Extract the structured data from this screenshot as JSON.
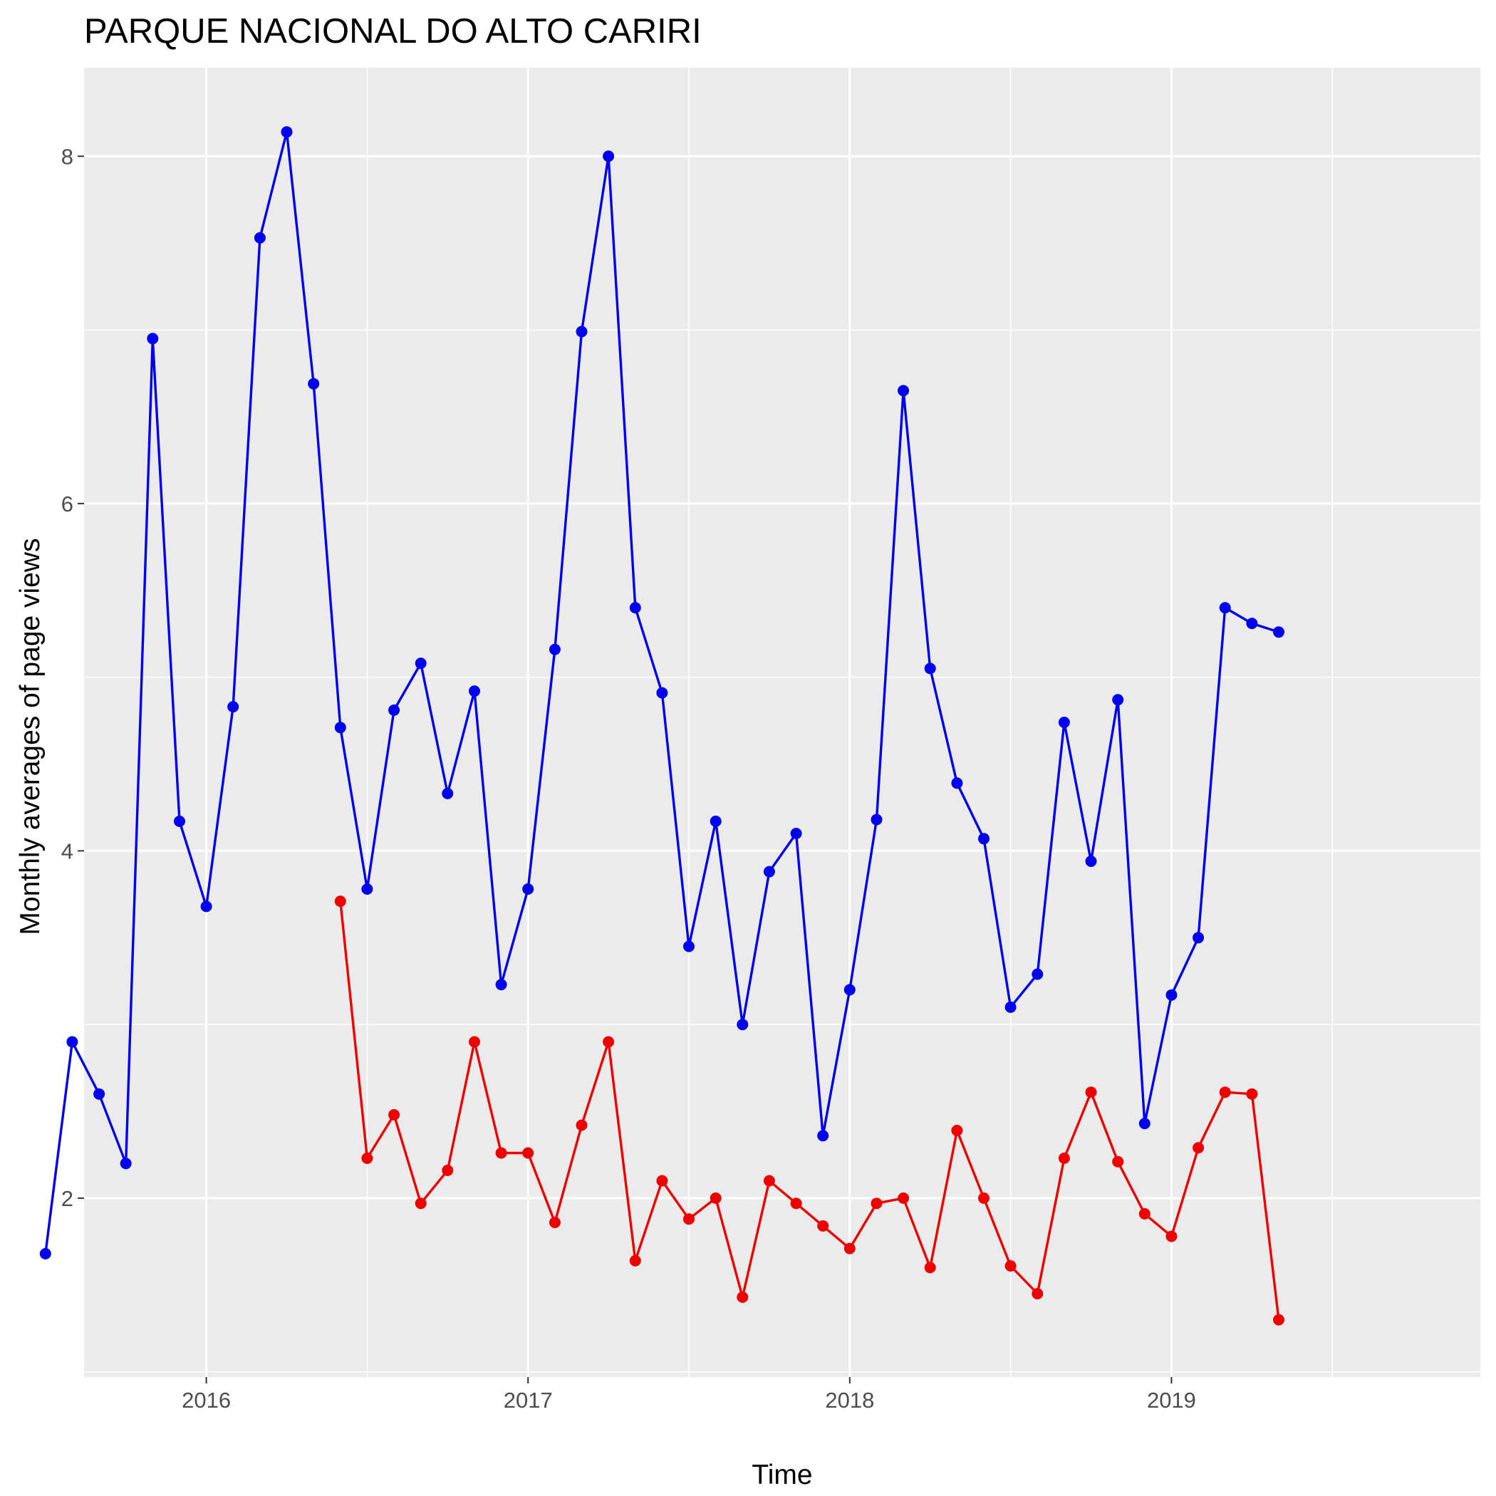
{
  "chart_data": {
    "type": "line",
    "title": "PARQUE NACIONAL DO ALTO CARIRI",
    "xlabel": "Time",
    "ylabel": "Monthly averages of page views",
    "xlim": [
      2015.62,
      2019.96
    ],
    "ylim": [
      0.97,
      8.51
    ],
    "x_ticks": [
      {
        "value": 2016,
        "label": "2016"
      },
      {
        "value": 2017,
        "label": "2017"
      },
      {
        "value": 2018,
        "label": "2018"
      },
      {
        "value": 2019,
        "label": "2019"
      }
    ],
    "y_ticks": [
      {
        "value": 2,
        "label": "2"
      },
      {
        "value": 4,
        "label": "4"
      },
      {
        "value": 6,
        "label": "6"
      },
      {
        "value": 8,
        "label": "8"
      }
    ],
    "grid": true,
    "legend": "none",
    "series": [
      {
        "color": "#0000ee",
        "points": [
          [
            "2015-07",
            1.68
          ],
          [
            "2015-08",
            2.9
          ],
          [
            "2015-09",
            2.6
          ],
          [
            "2015-10",
            2.2
          ],
          [
            "2015-11",
            6.95
          ],
          [
            "2015-12",
            4.17
          ],
          [
            "2016-01",
            3.68
          ],
          [
            "2016-02",
            4.83
          ],
          [
            "2016-03",
            7.53
          ],
          [
            "2016-04",
            8.14
          ],
          [
            "2016-05",
            6.69
          ],
          [
            "2016-06",
            4.71
          ],
          [
            "2016-07",
            3.78
          ],
          [
            "2016-08",
            4.81
          ],
          [
            "2016-09",
            5.08
          ],
          [
            "2016-10",
            4.33
          ],
          [
            "2016-11",
            4.92
          ],
          [
            "2016-12",
            3.23
          ],
          [
            "2017-01",
            3.78
          ],
          [
            "2017-02",
            5.16
          ],
          [
            "2017-03",
            6.99
          ],
          [
            "2017-04",
            8.0
          ],
          [
            "2017-05",
            5.4
          ],
          [
            "2017-06",
            4.91
          ],
          [
            "2017-07",
            3.45
          ],
          [
            "2017-08",
            4.17
          ],
          [
            "2017-09",
            3.0
          ],
          [
            "2017-10",
            3.88
          ],
          [
            "2017-11",
            4.1
          ],
          [
            "2017-12",
            2.36
          ],
          [
            "2018-01",
            3.2
          ],
          [
            "2018-02",
            4.18
          ],
          [
            "2018-03",
            6.65
          ],
          [
            "2018-04",
            5.05
          ],
          [
            "2018-05",
            4.39
          ],
          [
            "2018-06",
            4.07
          ],
          [
            "2018-07",
            3.1
          ],
          [
            "2018-08",
            3.29
          ],
          [
            "2018-09",
            4.74
          ],
          [
            "2018-10",
            3.94
          ],
          [
            "2018-11",
            4.87
          ],
          [
            "2018-12",
            2.43
          ],
          [
            "2019-01",
            3.17
          ],
          [
            "2019-02",
            3.5
          ],
          [
            "2019-03",
            5.4
          ],
          [
            "2019-04",
            5.31
          ],
          [
            "2019-05",
            5.26
          ]
        ]
      },
      {
        "color": "#ee0000",
        "points": [
          [
            "2016-06",
            3.71
          ],
          [
            "2016-07",
            2.23
          ],
          [
            "2016-08",
            2.48
          ],
          [
            "2016-09",
            1.97
          ],
          [
            "2016-10",
            2.16
          ],
          [
            "2016-11",
            2.9
          ],
          [
            "2016-12",
            2.26
          ],
          [
            "2017-01",
            2.26
          ],
          [
            "2017-02",
            1.86
          ],
          [
            "2017-03",
            2.42
          ],
          [
            "2017-04",
            2.9
          ],
          [
            "2017-05",
            1.64
          ],
          [
            "2017-06",
            2.1
          ],
          [
            "2017-07",
            1.88
          ],
          [
            "2017-08",
            2.0
          ],
          [
            "2017-09",
            1.43
          ],
          [
            "2017-10",
            2.1
          ],
          [
            "2017-11",
            1.97
          ],
          [
            "2017-12",
            1.84
          ],
          [
            "2018-01",
            1.71
          ],
          [
            "2018-02",
            1.97
          ],
          [
            "2018-03",
            2.0
          ],
          [
            "2018-04",
            1.6
          ],
          [
            "2018-05",
            2.39
          ],
          [
            "2018-06",
            2.0
          ],
          [
            "2018-07",
            1.61
          ],
          [
            "2018-08",
            1.45
          ],
          [
            "2018-09",
            2.23
          ],
          [
            "2018-10",
            2.61
          ],
          [
            "2018-11",
            2.21
          ],
          [
            "2018-12",
            1.91
          ],
          [
            "2019-01",
            1.78
          ],
          [
            "2019-02",
            2.29
          ],
          [
            "2019-03",
            2.61
          ],
          [
            "2019-04",
            2.6
          ],
          [
            "2019-05",
            1.3
          ]
        ]
      }
    ]
  }
}
